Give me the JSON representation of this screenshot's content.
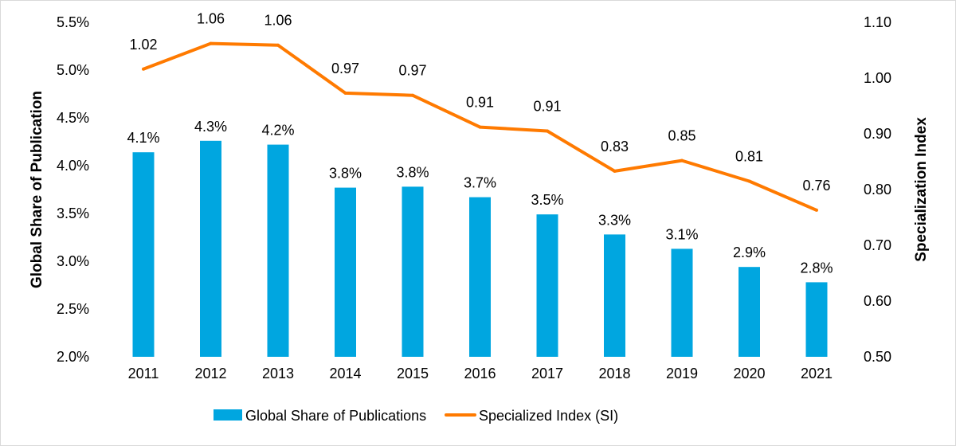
{
  "chart_data": {
    "type": "bar+line",
    "categories": [
      "2011",
      "2012",
      "2013",
      "2014",
      "2015",
      "2016",
      "2017",
      "2018",
      "2019",
      "2020",
      "2021"
    ],
    "series": [
      {
        "name": "Global Share of Publications",
        "type": "bar",
        "axis": "left",
        "color": "#00A6E0",
        "values": [
          4.14,
          4.26,
          4.22,
          3.77,
          3.78,
          3.67,
          3.49,
          3.28,
          3.13,
          2.94,
          2.78
        ],
        "labels": [
          "4.1%",
          "4.3%",
          "4.2%",
          "3.8%",
          "3.8%",
          "3.7%",
          "3.5%",
          "3.3%",
          "3.1%",
          "2.9%",
          "2.8%"
        ]
      },
      {
        "name": "Specialized Index (SI)",
        "type": "line",
        "axis": "right",
        "color": "#FF7A00",
        "values": [
          1.016,
          1.062,
          1.059,
          0.973,
          0.969,
          0.912,
          0.905,
          0.833,
          0.852,
          0.815,
          0.763
        ],
        "labels": [
          "1.02",
          "1.06",
          "1.06",
          "0.97",
          "0.97",
          "0.91",
          "0.91",
          "0.83",
          "0.85",
          "0.81",
          "0.76"
        ]
      }
    ],
    "ylabel": "Global Share of Publication",
    "ylabel_right": "Specialization Index",
    "ylim": [
      2.0,
      5.5
    ],
    "ylim_right": [
      0.5,
      1.1
    ],
    "yticks": [
      "2.0%",
      "2.5%",
      "3.0%",
      "3.5%",
      "4.0%",
      "4.5%",
      "5.0%",
      "5.5%"
    ],
    "yticks_right": [
      "0.50",
      "0.60",
      "0.70",
      "0.80",
      "0.90",
      "1.00",
      "1.10"
    ],
    "grid": false,
    "legend": "bottom"
  }
}
